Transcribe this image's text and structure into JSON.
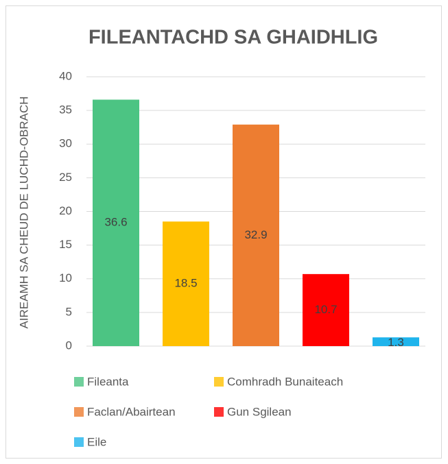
{
  "chart_data": {
    "type": "bar",
    "title": "FILEANTACHD SA GHAIDHLIG",
    "y_label": "AIREAMH SA CHEUD DE LUCHD-OBRACH",
    "categories": [
      "Fileanta",
      "Comhradh Bunaiteach",
      "Faclan/Abairtean",
      "Gun Sgilean",
      "Eile"
    ],
    "values": [
      36.6,
      18.5,
      32.9,
      10.7,
      1.3
    ],
    "colors": [
      "#4cc483",
      "#ffc000",
      "#ed7d31",
      "#ff0000",
      "#1fb4ec"
    ],
    "ylim": [
      0,
      40
    ],
    "yticks": [
      0,
      5,
      10,
      15,
      20,
      25,
      30,
      35,
      40
    ],
    "grid": true
  }
}
